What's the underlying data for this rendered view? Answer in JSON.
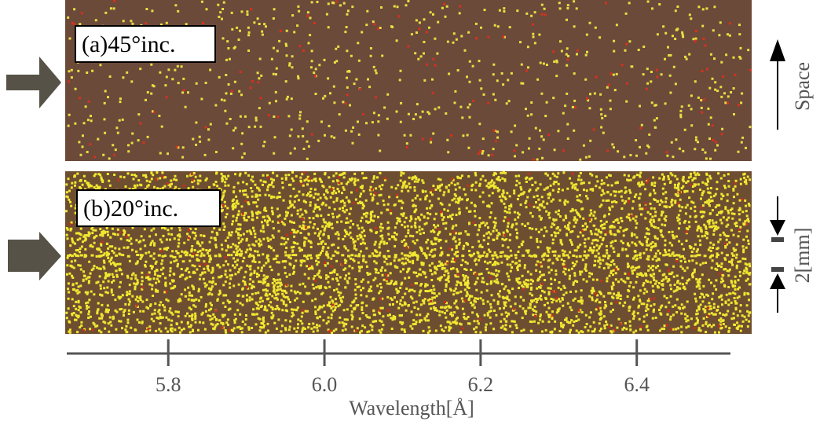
{
  "panels": [
    {
      "label": "(a)45°inc."
    },
    {
      "label": "(b)20°inc."
    }
  ],
  "x_axis": {
    "label": "Wavelength[Å]",
    "xlim": [
      5.67,
      6.52
    ],
    "xticks": [
      5.8,
      {
        "value": 6,
        "label": "6.0"
      },
      6.2,
      6.4
    ]
  },
  "side_labels": {
    "space": "Space",
    "scale": "2[mm]"
  }
}
